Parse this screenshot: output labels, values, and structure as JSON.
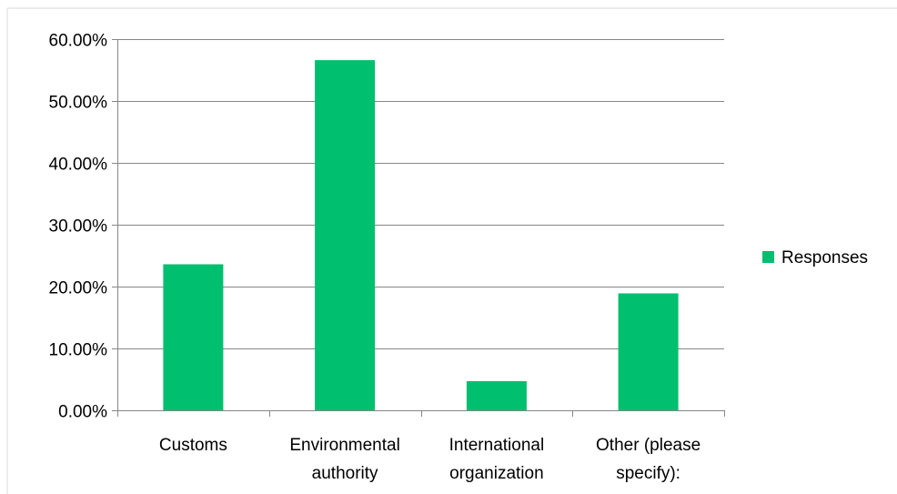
{
  "chart_data": {
    "type": "bar",
    "categories": [
      [
        "Customs"
      ],
      [
        "Environmental",
        "authority"
      ],
      [
        "International",
        "organization"
      ],
      [
        "Other (please",
        "specify):"
      ]
    ],
    "series": [
      {
        "name": "Responses",
        "color": "#00BF6F",
        "values": [
          23.6,
          56.6,
          4.7,
          18.9
        ]
      }
    ],
    "ylim": [
      0,
      60
    ],
    "yticks": [
      "0.00%",
      "10.00%",
      "20.00%",
      "30.00%",
      "40.00%",
      "50.00%",
      "60.00%"
    ],
    "y_tick_values": [
      0,
      10,
      20,
      30,
      40,
      50,
      60
    ],
    "grid": true,
    "legend_position": "right",
    "gridline_color": "#868686",
    "axis_color": "#868686"
  }
}
